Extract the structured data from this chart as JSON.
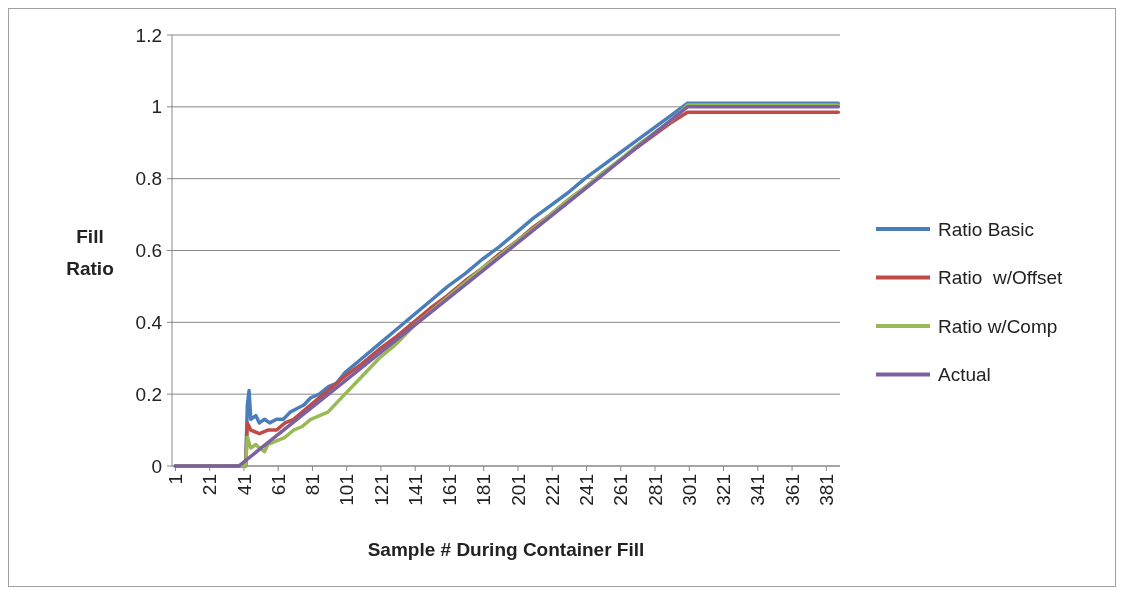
{
  "chart_data": {
    "type": "line",
    "xlabel": "Sample # During Container Fill",
    "ylabel": "Fill Ratio",
    "xlim": [
      -1,
      389
    ],
    "xticks": [
      1,
      21,
      41,
      61,
      81,
      101,
      121,
      141,
      161,
      181,
      201,
      221,
      241,
      261,
      281,
      301,
      321,
      341,
      361,
      381
    ],
    "ylim": [
      0,
      1.2
    ],
    "yticks": [
      0,
      0.2,
      0.4,
      0.6,
      0.8,
      1,
      1.2
    ],
    "grid": "y",
    "legend": "right",
    "marker": "none",
    "line_style": "solid",
    "series": [
      {
        "name": "Ratio Basic",
        "color": "#4a7ebb",
        "x": [
          1,
          42,
          43,
          44,
          45,
          48,
          50,
          53,
          56,
          60,
          64,
          68,
          72,
          76,
          80,
          85,
          90,
          95,
          100,
          110,
          120,
          130,
          140,
          150,
          160,
          170,
          180,
          190,
          200,
          210,
          220,
          230,
          240,
          250,
          260,
          270,
          280,
          290,
          300,
          320,
          340,
          360,
          388
        ],
        "values": [
          0,
          0,
          0.17,
          0.21,
          0.13,
          0.14,
          0.12,
          0.13,
          0.12,
          0.13,
          0.13,
          0.15,
          0.16,
          0.17,
          0.19,
          0.2,
          0.22,
          0.23,
          0.26,
          0.3,
          0.34,
          0.38,
          0.42,
          0.46,
          0.5,
          0.535,
          0.575,
          0.61,
          0.65,
          0.69,
          0.725,
          0.76,
          0.8,
          0.835,
          0.87,
          0.905,
          0.94,
          0.975,
          1.01,
          1.01,
          1.01,
          1.01,
          1.01
        ]
      },
      {
        "name": "Ratio  w/Offset",
        "color": "#be4b48",
        "x": [
          1,
          42,
          43,
          45,
          50,
          55,
          60,
          65,
          70,
          75,
          80,
          90,
          100,
          110,
          120,
          130,
          140,
          150,
          160,
          170,
          180,
          190,
          200,
          210,
          220,
          230,
          240,
          250,
          260,
          270,
          280,
          290,
          300,
          388
        ],
        "values": [
          0,
          0,
          0.12,
          0.1,
          0.09,
          0.1,
          0.1,
          0.12,
          0.13,
          0.15,
          0.17,
          0.21,
          0.25,
          0.285,
          0.325,
          0.36,
          0.4,
          0.44,
          0.475,
          0.515,
          0.55,
          0.59,
          0.625,
          0.665,
          0.7,
          0.74,
          0.775,
          0.81,
          0.85,
          0.885,
          0.92,
          0.955,
          0.985,
          0.985
        ]
      },
      {
        "name": "Ratio w/Comp",
        "color": "#98b954",
        "x": [
          1,
          42,
          43,
          45,
          48,
          50,
          53,
          55,
          60,
          65,
          70,
          75,
          80,
          90,
          100,
          110,
          120,
          130,
          140,
          150,
          160,
          170,
          180,
          190,
          200,
          210,
          220,
          230,
          240,
          250,
          260,
          270,
          280,
          290,
          300,
          388
        ],
        "values": [
          0,
          0,
          0.08,
          0.05,
          0.06,
          0.05,
          0.04,
          0.06,
          0.07,
          0.08,
          0.1,
          0.11,
          0.13,
          0.15,
          0.2,
          0.25,
          0.3,
          0.34,
          0.39,
          0.43,
          0.47,
          0.51,
          0.55,
          0.585,
          0.625,
          0.66,
          0.7,
          0.74,
          0.775,
          0.815,
          0.85,
          0.89,
          0.925,
          0.96,
          1.005,
          1.005
        ]
      },
      {
        "name": "Actual",
        "color": "#7d60a0",
        "x": [
          1,
          38,
          300,
          388
        ],
        "values": [
          0,
          0,
          1,
          1
        ]
      }
    ]
  }
}
